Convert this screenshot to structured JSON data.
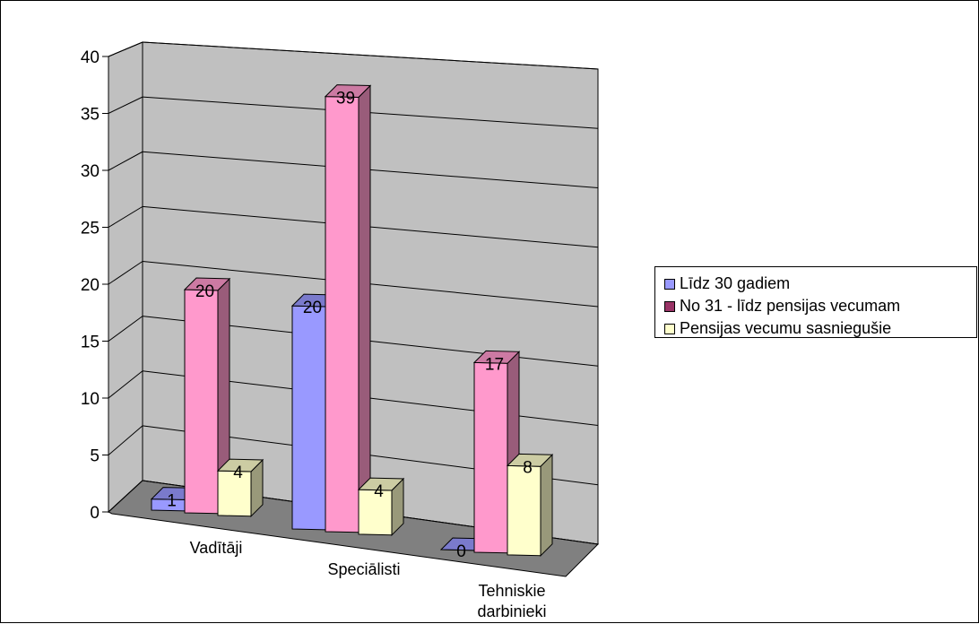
{
  "chart_data": {
    "type": "bar",
    "title": "",
    "xlabel": "",
    "ylabel": "",
    "ylim": [
      0,
      40
    ],
    "yticks": [
      "0",
      "5",
      "10",
      "15",
      "20",
      "25",
      "30",
      "35",
      "40"
    ],
    "categories": [
      "Vadītāji",
      "Speciālisti",
      "Tehniskie darbinieki"
    ],
    "category_lines": [
      [
        "Vadītāji"
      ],
      [
        "Speciālisti"
      ],
      [
        "Tehniskie",
        "darbinieki"
      ]
    ],
    "series": [
      {
        "name": "Līdz 30 gadiem",
        "values": [
          1,
          20,
          0
        ],
        "color": "#9999ff"
      },
      {
        "name": "No 31 - līdz pensijas vecumam",
        "values": [
          20,
          39,
          17
        ],
        "color": "#ff99cc",
        "legend_color": "#993366"
      },
      {
        "name": "Pensijas vecumu sasniegušie",
        "values": [
          4,
          4,
          8
        ],
        "color": "#ffffcc"
      }
    ],
    "grid": true,
    "legend_position": "right",
    "data_labels": true,
    "style": "3d-column"
  }
}
